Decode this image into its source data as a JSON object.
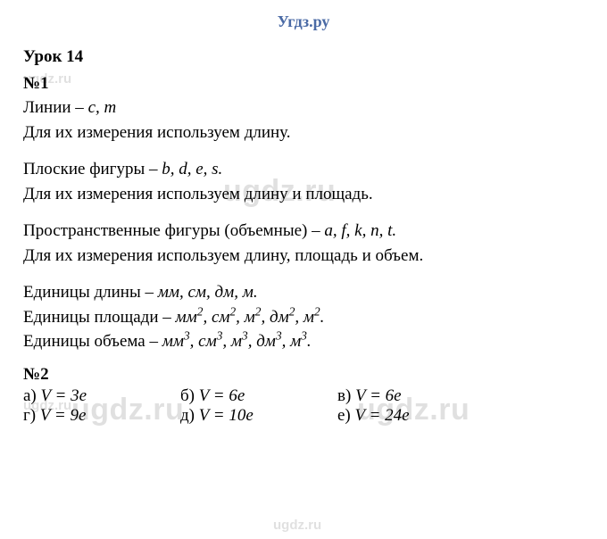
{
  "header": "Угдз.ру",
  "lesson_title": "Урок 14",
  "task1": {
    "num": "№1",
    "block1_l1_pre": "Линии – ",
    "block1_l1_vars": "c, m",
    "block1_l2": "Для их измерения используем длину.",
    "block2_l1_pre": "Плоские фигуры – ",
    "block2_l1_vars": "b, d, e, s.",
    "block2_l2": "Для их измерения используем длину и площадь.",
    "block3_l1_pre": "Пространственные фигуры (объемные) – ",
    "block3_l1_vars": "a, f, k, n, t.",
    "block3_l2": "Для их измерения используем длину, площадь и объем.",
    "units_len": "Единицы длины – ",
    "units_len_vals": "мм, см, дм, м.",
    "units_area": "Единицы площади – ",
    "units_area_vals_html": "мм<sup>2</sup>, см<sup>2</sup>, м<sup>2</sup>, дм<sup>2</sup>, м<sup>2</sup>.",
    "units_vol": "Единицы объема – ",
    "units_vol_vals_html": "мм<sup>3</sup>, см<sup>3</sup>, м<sup>3</sup>, дм<sup>3</sup>, м<sup>3</sup>."
  },
  "task2": {
    "num": "№2",
    "a_label": "а) ",
    "a_val": "V = 3e",
    "b_label": "б) ",
    "b_val": "V = 6e",
    "c_label": "в) ",
    "c_val": "V = 6e",
    "d_label": "г) ",
    "d_val": "V = 9e",
    "e_label": "д) ",
    "e_val": "V = 10e",
    "f_label": "е) ",
    "f_val": "V = 24e"
  },
  "watermark_small": "ugdz.ru",
  "watermark_big": "ugdz.ru",
  "colors": {
    "header": "#4a6aa5",
    "text": "#000000",
    "bg": "#ffffff",
    "watermark": "rgba(0,0,0,0.12)"
  },
  "fonts": {
    "body_family": "Times New Roman",
    "body_size_pt": 14,
    "header_size_pt": 14,
    "watermark_family": "Arial"
  }
}
